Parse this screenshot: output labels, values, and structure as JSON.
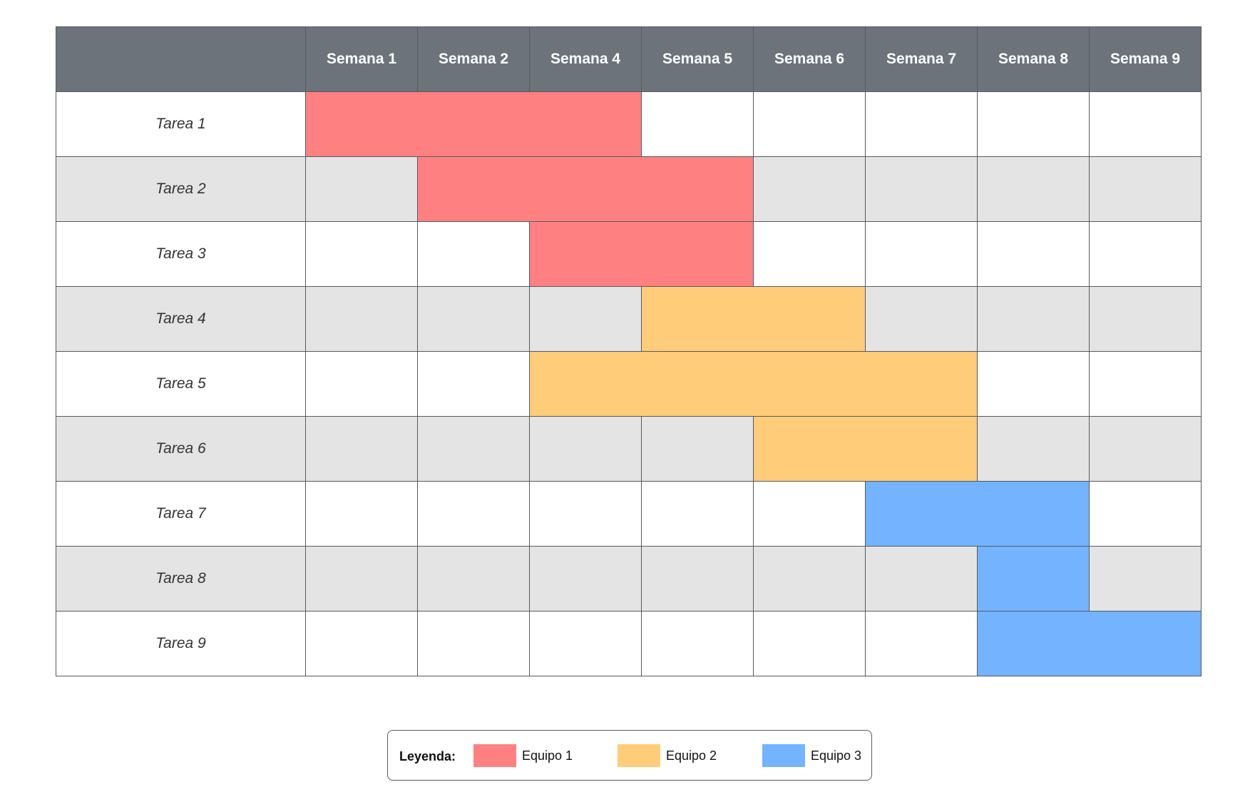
{
  "header": {
    "corner": "",
    "weeks": [
      "Semana 1",
      "Semana 2",
      "Semana 4",
      "Semana 5",
      "Semana 6",
      "Semana 7",
      "Semana 8",
      "Semana 9"
    ]
  },
  "tasks": [
    {
      "label": "Tarea 1",
      "team": 1,
      "start_col": 0,
      "end_col": 2
    },
    {
      "label": "Tarea 2",
      "team": 1,
      "start_col": 1,
      "end_col": 3
    },
    {
      "label": "Tarea 3",
      "team": 1,
      "start_col": 2,
      "end_col": 3
    },
    {
      "label": "Tarea 4",
      "team": 2,
      "start_col": 3,
      "end_col": 4
    },
    {
      "label": "Tarea 5",
      "team": 2,
      "start_col": 2,
      "end_col": 5
    },
    {
      "label": "Tarea 6",
      "team": 2,
      "start_col": 4,
      "end_col": 5
    },
    {
      "label": "Tarea 7",
      "team": 3,
      "start_col": 5,
      "end_col": 6
    },
    {
      "label": "Tarea 8",
      "team": 3,
      "start_col": 6,
      "end_col": 6
    },
    {
      "label": "Tarea 9",
      "team": 3,
      "start_col": 6,
      "end_col": 7
    }
  ],
  "legend": {
    "title": "Leyenda:",
    "items": [
      {
        "label": "Equipo 1",
        "color": "#ff8080"
      },
      {
        "label": "Equipo 2",
        "color": "#ffcc7a"
      },
      {
        "label": "Equipo 3",
        "color": "#74b3ff"
      }
    ]
  },
  "colors": {
    "header_bg": "#6c737a",
    "alt_row_bg": "#e4e4e4",
    "grid_line": "#555a60"
  }
}
